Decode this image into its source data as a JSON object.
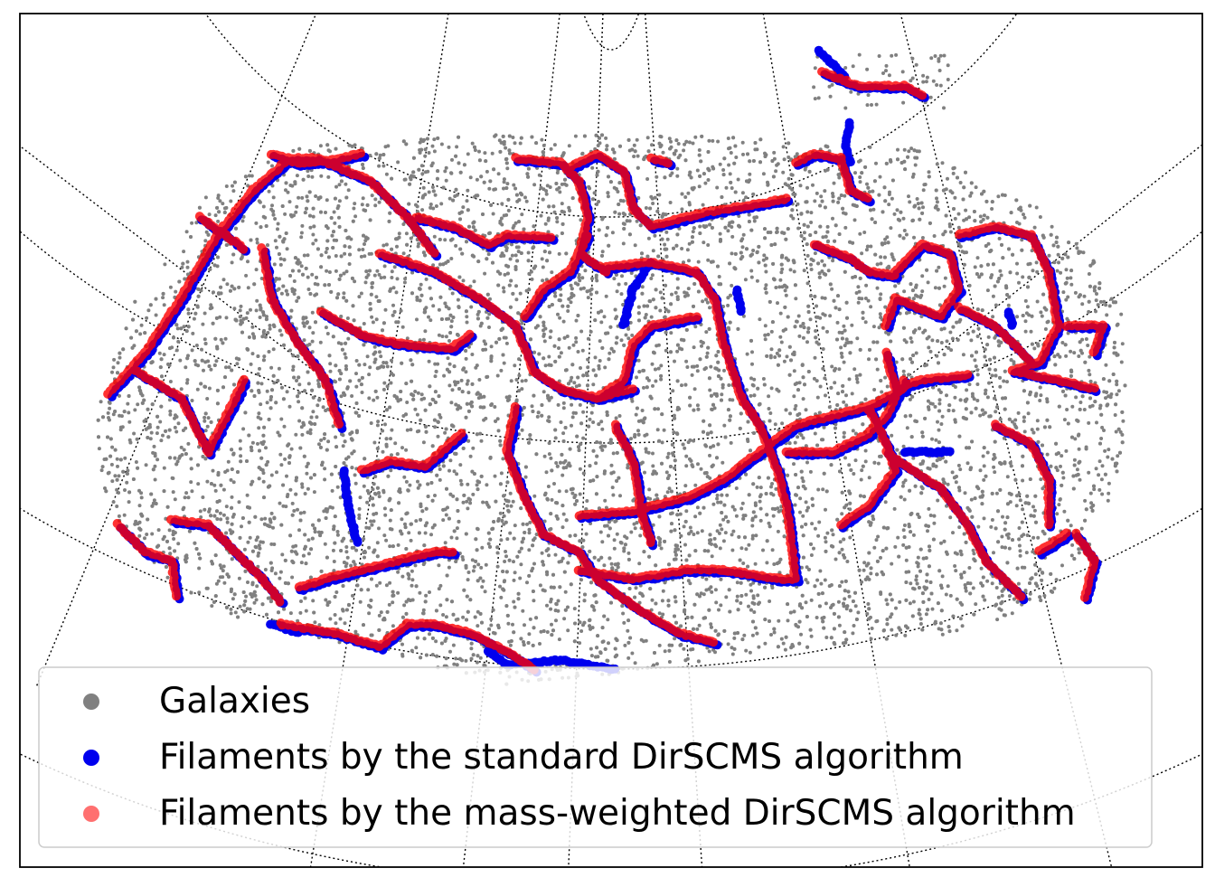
{
  "chart_data": {
    "type": "scatter",
    "projection": "sky map (curved RA/Dec graticule)",
    "grid": true,
    "legend_placement": "lower-center",
    "series": [
      {
        "name": "Galaxies",
        "color": "#808080",
        "marker": "small dots",
        "count_approx": 9000
      },
      {
        "name": "Filaments by the standard DirSCMS algorithm",
        "color": "#0000ee",
        "marker": "dots along ridges"
      },
      {
        "name": "Filaments by the mass-weighted DirSCMS algorithm",
        "color": "#ff0000",
        "marker": "semi-transparent dots along ridges"
      }
    ]
  }
}
